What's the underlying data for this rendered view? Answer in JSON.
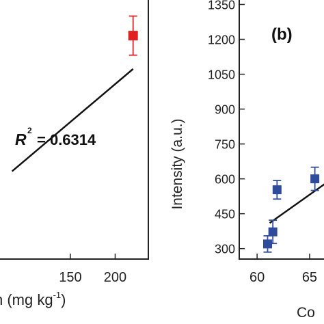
{
  "chart_data": [
    {
      "type": "scatter",
      "panel": "a",
      "xlabel": "n (mg kg",
      "xlabel_superscript": "-1",
      "xlabel_suffix": ")",
      "x_ticks": [
        "150",
        "200"
      ],
      "xlim": [
        70,
        237
      ],
      "ylim": [
        0,
        1
      ],
      "points": [
        {
          "x": 220,
          "y": 0.858,
          "err": 0.075
        }
      ],
      "fit_line": [
        {
          "x": 85,
          "y": 0.337
        },
        {
          "x": 220,
          "y": 0.73
        }
      ],
      "annotation": {
        "r": "R",
        "sup": "2",
        "eq": "= 0.6314"
      },
      "marker_color": "#e02020"
    },
    {
      "type": "scatter",
      "panel": "b",
      "panel_label": "(b)",
      "ylabel": "Intensity (a.u.)",
      "xlabel": "Co",
      "x_ticks": [
        "60",
        "65"
      ],
      "y_ticks": [
        "300",
        "450",
        "600",
        "750",
        "900",
        "1050",
        "1200",
        "1350"
      ],
      "xlim": [
        58.3,
        66.5
      ],
      "ylim": [
        255,
        1375
      ],
      "points": [
        {
          "x": 61.0,
          "y": 320,
          "err": 35
        },
        {
          "x": 61.5,
          "y": 372,
          "err": 50
        },
        {
          "x": 61.9,
          "y": 553,
          "err": 40
        },
        {
          "x": 65.5,
          "y": 600,
          "err": 50
        }
      ],
      "fit_line": [
        {
          "x": 61.2,
          "y": 410
        },
        {
          "x": 66.5,
          "y": 580
        }
      ],
      "marker_color": "#2f4c9c"
    }
  ]
}
